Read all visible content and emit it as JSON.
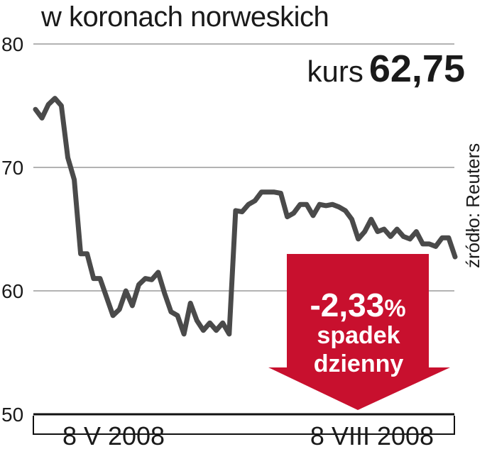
{
  "title": "w koronach norweskich",
  "kurs": {
    "label": "kurs",
    "value": "62,75"
  },
  "source": "źródło: Reuters",
  "badge": {
    "change": "-2,33",
    "percent": "%",
    "line1": "spadek",
    "line2": "dzienny",
    "color": "#c8102e"
  },
  "chart_data": {
    "type": "line",
    "title": "w koronach norweskich",
    "ylim": [
      50,
      80
    ],
    "yticks": [
      80,
      70,
      60,
      50
    ],
    "ytick_labels": [
      "80",
      "70",
      "60",
      "50"
    ],
    "xticks": [
      "8 V 2008",
      "8 VIII 2008"
    ],
    "grid": true,
    "line_color": "#4a4a4a",
    "series": [
      {
        "values": [
          74.7,
          74.0,
          75.1,
          75.6,
          75.0,
          70.8,
          69.0,
          63.0,
          63.0,
          61.0,
          61.0,
          59.5,
          58.0,
          58.5,
          60.0,
          58.8,
          60.5,
          61.0,
          60.9,
          61.5,
          59.8,
          58.3,
          58.0,
          56.5,
          59.0,
          57.6,
          56.8,
          57.4,
          56.8,
          57.4,
          56.5,
          66.5,
          66.4,
          67.0,
          67.3,
          68.0,
          68.0,
          68.0,
          67.9,
          66.0,
          66.3,
          67.0,
          67.0,
          66.1,
          67.0,
          66.9,
          67.0,
          66.8,
          66.5,
          65.8,
          64.2,
          64.8,
          65.8,
          64.8,
          65.0,
          64.4,
          65.0,
          64.4,
          64.2,
          64.8,
          63.8,
          63.8,
          63.6,
          64.3,
          64.3,
          62.75
        ]
      }
    ]
  }
}
